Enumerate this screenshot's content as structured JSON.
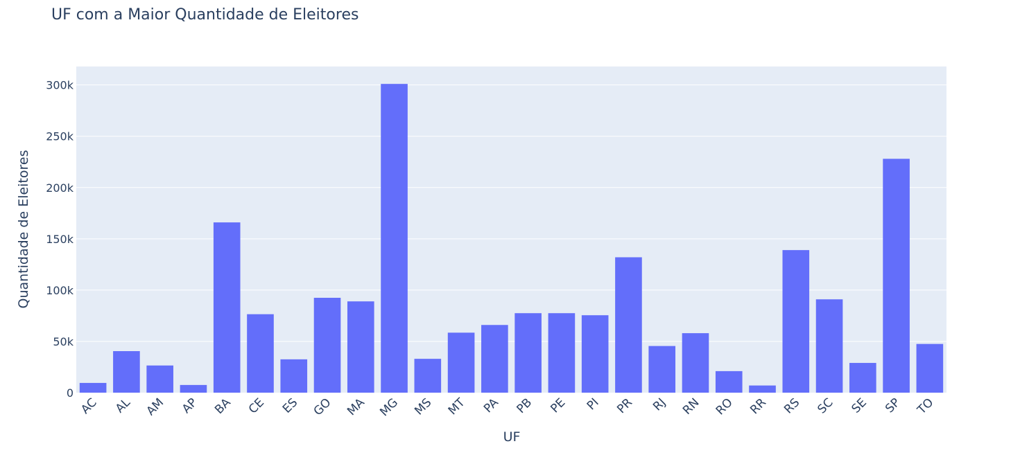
{
  "chart_data": {
    "type": "bar",
    "title": "UF com a Maior Quantidade de Eleitores",
    "xlabel": "UF",
    "ylabel": "Quantidade de Eleitores",
    "categories": [
      "AC",
      "AL",
      "AM",
      "AP",
      "BA",
      "CE",
      "ES",
      "GO",
      "MA",
      "MG",
      "MS",
      "MT",
      "PA",
      "PB",
      "PE",
      "PI",
      "PR",
      "RJ",
      "RN",
      "RO",
      "RR",
      "RS",
      "SC",
      "SE",
      "SP",
      "TO"
    ],
    "values": [
      9500,
      40500,
      26500,
      7500,
      166000,
      76500,
      32500,
      92500,
      89000,
      301000,
      33000,
      58500,
      66000,
      77500,
      77500,
      75500,
      132000,
      45500,
      58000,
      21000,
      7000,
      139000,
      91000,
      29000,
      228000,
      47500
    ],
    "ylim": [
      0,
      318000
    ],
    "yticks": [
      0,
      50000,
      100000,
      150000,
      200000,
      250000,
      300000
    ],
    "ytick_labels": [
      "0",
      "50k",
      "100k",
      "150k",
      "200k",
      "250k",
      "300k"
    ],
    "grid": true,
    "bar_color": "#636efa",
    "plot_bgcolor": "#e5ecf6",
    "text_color": "#2a3f5f"
  }
}
